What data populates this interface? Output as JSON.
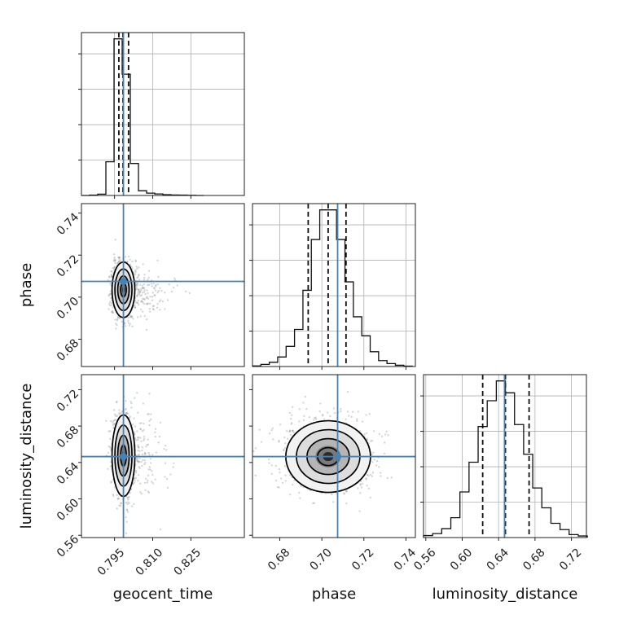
{
  "chart_data": {
    "type": "corner",
    "parameters": [
      "geocent_time",
      "phase",
      "luminosity_distance"
    ],
    "ranges": {
      "geocent_time": [
        0.782,
        0.846
      ],
      "phase": [
        0.667,
        0.7445
      ],
      "luminosity_distance": [
        0.5575,
        0.7365
      ]
    },
    "ticks": {
      "geocent_time": [
        "0.795",
        "0.810",
        "0.825"
      ],
      "phase": [
        "0.68",
        "0.70",
        "0.72",
        "0.74"
      ],
      "luminosity_distance": [
        "0.56",
        "0.60",
        "0.64",
        "0.68",
        "0.72"
      ]
    },
    "truths": {
      "geocent_time": 0.7985,
      "phase": 0.7075,
      "luminosity_distance": 0.6465
    },
    "quantiles": {
      "geocent_time": [
        0.7967,
        0.7983,
        0.8005
      ],
      "phase": [
        0.6935,
        0.703,
        0.7115
      ],
      "luminosity_distance": [
        0.6225,
        0.6475,
        0.6735
      ]
    },
    "histograms": {
      "geocent_time": {
        "edges": [
          0.782,
          0.7852,
          0.7884,
          0.7916,
          0.7948,
          0.798,
          0.8012,
          0.8044,
          0.8076,
          0.8108,
          0.814,
          0.8172,
          0.8204,
          0.8236,
          0.8268,
          0.83
        ],
        "counts": [
          0,
          2,
          8,
          200,
          930,
          720,
          190,
          28,
          14,
          9,
          5,
          3,
          2,
          1,
          0
        ]
      },
      "phase": {
        "edges": [
          0.667,
          0.671,
          0.675,
          0.679,
          0.683,
          0.687,
          0.691,
          0.695,
          0.699,
          0.703,
          0.707,
          0.711,
          0.715,
          0.719,
          0.723,
          0.727,
          0.731,
          0.735,
          0.739,
          0.743
        ],
        "counts": [
          3,
          10,
          20,
          45,
          95,
          175,
          360,
          600,
          740,
          740,
          600,
          400,
          235,
          145,
          70,
          28,
          14,
          6,
          2
        ]
      },
      "luminosity_distance": {
        "edges": [
          0.5575,
          0.5675,
          0.5775,
          0.5875,
          0.5975,
          0.6075,
          0.6175,
          0.6275,
          0.6375,
          0.6475,
          0.6575,
          0.6675,
          0.6775,
          0.6875,
          0.6975,
          0.7075,
          0.7175,
          0.7275,
          0.7375
        ],
        "counts": [
          10,
          20,
          45,
          100,
          230,
          380,
          560,
          690,
          790,
          730,
          570,
          420,
          250,
          150,
          72,
          40,
          15,
          8
        ]
      }
    },
    "density_peaks": {
      "geocent_time_vs_phase": {
        "x": 0.7985,
        "y": 0.7035
      },
      "geocent_time_vs_luminosity_distance": {
        "x": 0.7985,
        "y": 0.6475
      },
      "phase_vs_luminosity_distance": {
        "x": 0.703,
        "y": 0.6465
      }
    }
  }
}
